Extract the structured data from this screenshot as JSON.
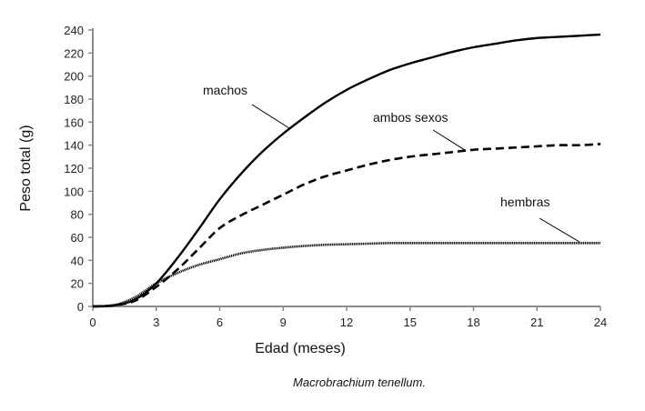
{
  "chart_data": {
    "type": "line",
    "title": "",
    "caption": "Macrobrachium tenellum.",
    "xlabel": "Edad (meses)",
    "ylabel": "Peso total (g)",
    "xlim": [
      0,
      24
    ],
    "ylim": [
      0,
      240
    ],
    "xticks": [
      0,
      3,
      6,
      9,
      12,
      15,
      18,
      21,
      24
    ],
    "yticks": [
      0,
      20,
      40,
      60,
      80,
      100,
      120,
      140,
      160,
      180,
      200,
      220,
      240
    ],
    "grid": false,
    "x": [
      0,
      1,
      2,
      3,
      4,
      5,
      6,
      7,
      8,
      9,
      10,
      11,
      12,
      13,
      14,
      15,
      16,
      17,
      18,
      19,
      20,
      21,
      22,
      23,
      24
    ],
    "series": [
      {
        "name": "machos",
        "style": "solid",
        "color": "#000000",
        "values": [
          0,
          1,
          6,
          20,
          42,
          67,
          93,
          115,
          134,
          150,
          164,
          177,
          188,
          197,
          205,
          211,
          216,
          221,
          225,
          228,
          231,
          233,
          234,
          235,
          236
        ]
      },
      {
        "name": "ambos sexos",
        "style": "dashed",
        "color": "#000000",
        "values": [
          0,
          1,
          5,
          17,
          32,
          50,
          68,
          79,
          88,
          97,
          106,
          113,
          118,
          123,
          127,
          130,
          132,
          134,
          136,
          137,
          138,
          139,
          140,
          140,
          141
        ]
      },
      {
        "name": "hembras",
        "style": "dotted",
        "color": "#000000",
        "values": [
          0,
          1,
          8,
          20,
          29,
          36,
          41,
          46,
          49,
          51,
          52.5,
          53.5,
          54,
          54.5,
          55,
          55,
          55,
          55,
          55,
          55,
          55,
          55,
          55,
          55,
          55
        ]
      }
    ],
    "annotations": [
      "machos",
      "ambos sexos",
      "hembras"
    ]
  }
}
